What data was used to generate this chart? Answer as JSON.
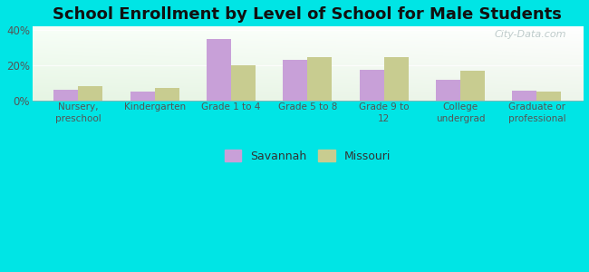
{
  "title": "School Enrollment by Level of School for Male Students",
  "categories": [
    "Nursery,\npreschool",
    "Kindergarten",
    "Grade 1 to 4",
    "Grade 5 to 8",
    "Grade 9 to\n12",
    "College\nundergrad",
    "Graduate or\nprofessional"
  ],
  "savannah": [
    6.0,
    5.0,
    35.0,
    23.0,
    17.5,
    11.5,
    5.5
  ],
  "missouri": [
    8.0,
    7.0,
    20.0,
    24.5,
    24.5,
    17.0,
    5.0
  ],
  "savannah_color": "#c8a0d8",
  "missouri_color": "#c8cc90",
  "background_color": "#00e5e5",
  "ylim": [
    0,
    42
  ],
  "yticks": [
    0,
    20,
    40
  ],
  "ytick_labels": [
    "0%",
    "20%",
    "40%"
  ],
  "bar_width": 0.32,
  "title_fontsize": 13,
  "legend_labels": [
    "Savannah",
    "Missouri"
  ],
  "watermark": "City-Data.com"
}
